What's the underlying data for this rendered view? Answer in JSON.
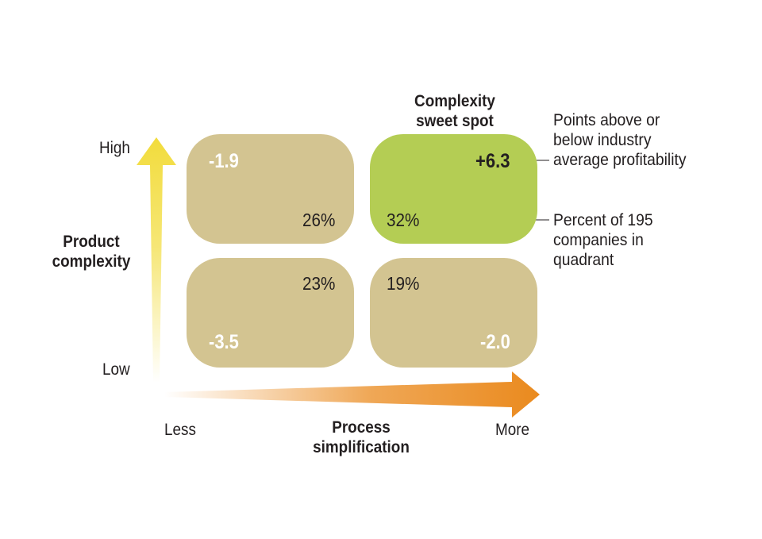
{
  "y_axis": {
    "title_line1": "Product",
    "title_line2": "complexity",
    "high": "High",
    "low": "Low"
  },
  "x_axis": {
    "title_line1": "Process",
    "title_line2": "simplification",
    "less": "Less",
    "more": "More"
  },
  "sweet_spot": {
    "line1": "Complexity",
    "line2": "sweet spot"
  },
  "quadrants": {
    "top_left": {
      "value": "-1.9",
      "percent": "26%"
    },
    "top_right": {
      "value": "+6.3",
      "percent": "32%"
    },
    "bottom_left": {
      "value": "-3.5",
      "percent": "23%"
    },
    "bottom_right": {
      "value": "-2.0",
      "percent": "19%"
    }
  },
  "legend": {
    "points_line1": "Points above or",
    "points_line2": "below industry",
    "points_line3": "average profitability",
    "percent_line1": "Percent of 195",
    "percent_line2": "companies in",
    "percent_line3": "quadrant"
  },
  "colors": {
    "quadrant_default": "#d3c491",
    "quadrant_highlight": "#b4cd54",
    "y_arrow": "#f2dc3c",
    "x_arrow": "#ea8a1e"
  }
}
